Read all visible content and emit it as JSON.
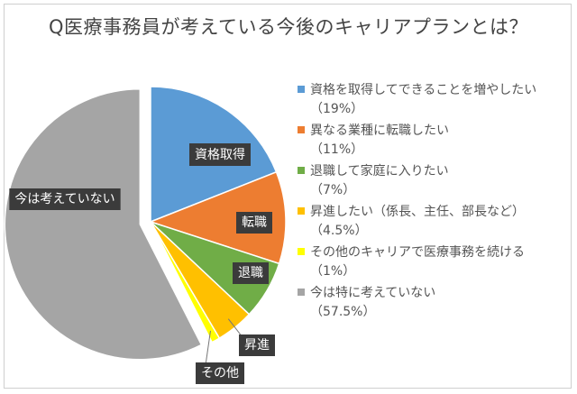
{
  "chart_data": {
    "type": "pie",
    "title": "Q医療事務員が考えている今後のキャリアプランとは？",
    "slices": [
      {
        "name": "資格を取得してできることを増やしたい",
        "value": 19,
        "pct_label": "（19%）",
        "label": "資格取得",
        "color": "#5b9bd5"
      },
      {
        "name": "異なる業種に転職したい",
        "value": 11,
        "pct_label": "（11%）",
        "label": "転職",
        "color": "#ed7d31"
      },
      {
        "name": "退職して家庭に入りたい",
        "value": 7,
        "pct_label": "（7%）",
        "label": "退職",
        "color": "#70ad47"
      },
      {
        "name": "昇進したい（係長、主任、部長など）",
        "value": 4.5,
        "pct_label": "（4.5%）",
        "label": "昇進",
        "color": "#ffc000"
      },
      {
        "name": "その他のキャリアで医療事務を続ける",
        "value": 1,
        "pct_label": "（1%）",
        "label": "その他",
        "color": "#ffff00"
      },
      {
        "name": "今は特に考えていない",
        "value": 57.5,
        "pct_label": "（57.5%）",
        "label": "今は考えていない",
        "color": "#a5a5a5",
        "exploded": true
      }
    ],
    "legend_position": "right"
  }
}
